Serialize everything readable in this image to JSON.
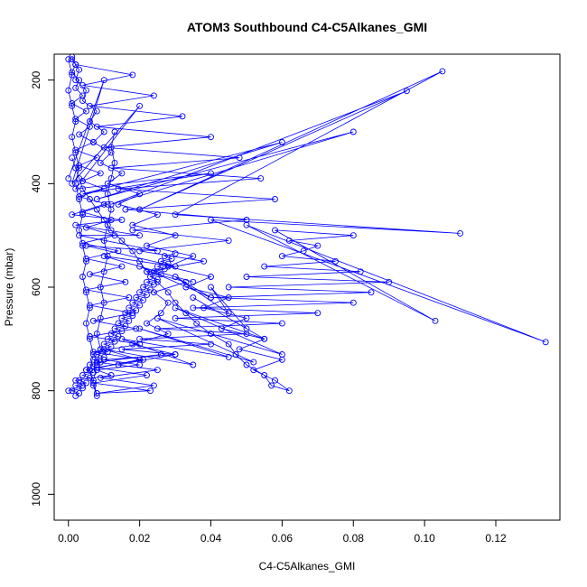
{
  "chart_data": {
    "type": "line",
    "title": "ATOM3 Southbound C4-C5Alkanes_GMI",
    "xlabel": "C4-C5Alkanes_GMI",
    "ylabel": "Pressure (mbar)",
    "xlim": [
      -0.004,
      0.138
    ],
    "ylim": [
      1050,
      150
    ],
    "y_reversed": true,
    "x_ticks": [
      {
        "value": 0.0,
        "label": "0.00"
      },
      {
        "value": 0.02,
        "label": "0.02"
      },
      {
        "value": 0.04,
        "label": "0.04"
      },
      {
        "value": 0.06,
        "label": "0.06"
      },
      {
        "value": 0.08,
        "label": "0.08"
      },
      {
        "value": 0.1,
        "label": "0.10"
      },
      {
        "value": 0.12,
        "label": "0.12"
      }
    ],
    "y_ticks": [
      {
        "value": 200,
        "label": "200"
      },
      {
        "value": 400,
        "label": "400"
      },
      {
        "value": 600,
        "label": "600"
      },
      {
        "value": 800,
        "label": "800"
      },
      {
        "value": 1000,
        "label": "1000"
      }
    ],
    "grid": false,
    "legend": "none",
    "series_color": "#0000ff",
    "marker": "open-circle",
    "series": [
      {
        "x": [
          0.001,
          0.003,
          0.002,
          0.005,
          0.004,
          0.008,
          0.006,
          0.01,
          0.007,
          0.012,
          0.009,
          0.015,
          0.011,
          0.02,
          0.014,
          0.025,
          0.018,
          0.03,
          0.022,
          0.035,
          0.028,
          0.04,
          0.033,
          0.045,
          0.038,
          0.05,
          0.043,
          0.055,
          0.048,
          0.06,
          0.052,
          0.058,
          0.062,
          0.057,
          0.055,
          0.05,
          0.047,
          0.045,
          0.04,
          0.036,
          0.033,
          0.03,
          0.028,
          0.025,
          0.022,
          0.02,
          0.018,
          0.015,
          0.012,
          0.01,
          0.008,
          0.006,
          0.004,
          0.003,
          0.002,
          0.001
        ],
        "y": [
          160,
          180,
          200,
          220,
          240,
          260,
          280,
          300,
          320,
          340,
          360,
          380,
          400,
          420,
          440,
          460,
          480,
          500,
          520,
          540,
          560,
          580,
          600,
          620,
          640,
          660,
          680,
          700,
          720,
          740,
          760,
          780,
          800,
          790,
          770,
          750,
          730,
          710,
          690,
          670,
          650,
          630,
          610,
          590,
          570,
          550,
          530,
          510,
          490,
          470,
          450,
          430,
          410,
          390,
          370,
          350
        ]
      },
      {
        "x": [
          0.0,
          0.004,
          0.002,
          0.012,
          0.008,
          0.02,
          0.01,
          0.03,
          0.015,
          0.04,
          0.02,
          0.05,
          0.025,
          0.06,
          0.03,
          0.07,
          0.035,
          0.08,
          0.04,
          0.085,
          0.045,
          0.09,
          0.05,
          0.082,
          0.055,
          0.075,
          0.06,
          0.066,
          0.07,
          0.062,
          0.08,
          0.058,
          0.103,
          0.05,
          0.134,
          0.04,
          0.11,
          0.03,
          0.105,
          0.02,
          0.095,
          0.012,
          0.08,
          0.008,
          0.06,
          0.004,
          0.04,
          0.002,
          0.02,
          0.001,
          0.01,
          0.0
        ],
        "y": [
          800,
          790,
          780,
          770,
          760,
          750,
          740,
          730,
          720,
          710,
          700,
          690,
          680,
          670,
          660,
          650,
          640,
          630,
          620,
          610,
          600,
          590,
          580,
          570,
          560,
          550,
          540,
          530,
          520,
          510,
          500,
          490,
          665,
          480,
          706,
          470,
          496,
          460,
          183,
          450,
          221,
          440,
          300,
          430,
          320,
          420,
          380,
          410,
          250,
          400,
          200,
          390
        ]
      },
      {
        "x": [
          0.002,
          0.003,
          0.001,
          0.004,
          0.002,
          0.005,
          0.003,
          0.006,
          0.004,
          0.007,
          0.005,
          0.008,
          0.006,
          0.009,
          0.007,
          0.01,
          0.008,
          0.011,
          0.009,
          0.012,
          0.01,
          0.013,
          0.011,
          0.014,
          0.012,
          0.015,
          0.013,
          0.016,
          0.014,
          0.017,
          0.015,
          0.018,
          0.016,
          0.019,
          0.017,
          0.02,
          0.018,
          0.021,
          0.019,
          0.022,
          0.02,
          0.023,
          0.021,
          0.024,
          0.022,
          0.025,
          0.023,
          0.026,
          0.024,
          0.027,
          0.025,
          0.028,
          0.026,
          0.029,
          0.027,
          0.03
        ],
        "y": [
          810,
          805,
          800,
          795,
          790,
          785,
          780,
          775,
          770,
          765,
          760,
          755,
          750,
          745,
          740,
          735,
          730,
          725,
          720,
          715,
          710,
          705,
          700,
          695,
          690,
          685,
          680,
          675,
          670,
          665,
          660,
          655,
          650,
          645,
          640,
          635,
          630,
          625,
          620,
          615,
          610,
          605,
          600,
          595,
          590,
          585,
          580,
          575,
          570,
          565,
          560,
          555,
          550,
          545,
          540,
          535
        ]
      },
      {
        "x": [
          0.001,
          0.002,
          0.001,
          0.003,
          0.002,
          0.004,
          0.001,
          0.005,
          0.002,
          0.006,
          0.003,
          0.007,
          0.002,
          0.008,
          0.003,
          0.009,
          0.004,
          0.01,
          0.003,
          0.011,
          0.004,
          0.012,
          0.005,
          0.013,
          0.004,
          0.014,
          0.005,
          0.015,
          0.006,
          0.016,
          0.005,
          0.017,
          0.006,
          0.018,
          0.007,
          0.019,
          0.006,
          0.02,
          0.007,
          0.021,
          0.008,
          0.022,
          0.007,
          0.023,
          0.008,
          0.024,
          0.009,
          0.025,
          0.008,
          0.026
        ],
        "y": [
          155,
          170,
          185,
          200,
          215,
          230,
          245,
          260,
          275,
          290,
          305,
          320,
          335,
          350,
          365,
          380,
          395,
          410,
          425,
          440,
          455,
          470,
          485,
          500,
          515,
          530,
          545,
          560,
          575,
          590,
          605,
          620,
          635,
          650,
          665,
          680,
          695,
          710,
          725,
          740,
          755,
          770,
          785,
          800,
          805,
          790,
          775,
          760,
          745,
          730
        ]
      },
      {
        "x": [
          0.0,
          0.001,
          0.0,
          0.001,
          0.002,
          0.001,
          0.002,
          0.003,
          0.002,
          0.003,
          0.004,
          0.003,
          0.004,
          0.005,
          0.004,
          0.005,
          0.006,
          0.005,
          0.006,
          0.007,
          0.006,
          0.007,
          0.008,
          0.007,
          0.008,
          0.009,
          0.008,
          0.009,
          0.01,
          0.009,
          0.01,
          0.011,
          0.01,
          0.011,
          0.012,
          0.011,
          0.012,
          0.013,
          0.012,
          0.013
        ],
        "y": [
          160,
          190,
          220,
          250,
          280,
          310,
          340,
          370,
          400,
          430,
          460,
          490,
          520,
          550,
          580,
          610,
          640,
          670,
          700,
          730,
          760,
          790,
          810,
          780,
          750,
          720,
          690,
          660,
          630,
          600,
          570,
          540,
          510,
          480,
          450,
          420,
          390,
          360,
          330,
          300
        ]
      },
      {
        "x": [
          0.005,
          0.02,
          0.01,
          0.035,
          0.015,
          0.045,
          0.02,
          0.052,
          0.025,
          0.06,
          0.03,
          0.055,
          0.035,
          0.05,
          0.04,
          0.045,
          0.03,
          0.04,
          0.02,
          0.035,
          0.01,
          0.03,
          0.005,
          0.025,
          0.003,
          0.02,
          0.002,
          0.015,
          0.001,
          0.01
        ],
        "y": [
          760,
          740,
          720,
          750,
          700,
          735,
          680,
          745,
          660,
          730,
          640,
          700,
          620,
          680,
          600,
          650,
          580,
          620,
          560,
          590,
          540,
          560,
          520,
          530,
          500,
          500,
          480,
          470,
          460,
          440
        ]
      },
      {
        "x": [
          0.002,
          0.018,
          0.004,
          0.024,
          0.006,
          0.032,
          0.008,
          0.04,
          0.01,
          0.048,
          0.012,
          0.054,
          0.014,
          0.058,
          0.016,
          0.05,
          0.018,
          0.045,
          0.02,
          0.038,
          0.022,
          0.033,
          0.024,
          0.028,
          0.026,
          0.022,
          0.028,
          0.018,
          0.03,
          0.014
        ],
        "y": [
          170,
          190,
          210,
          230,
          250,
          270,
          290,
          310,
          330,
          350,
          370,
          390,
          410,
          430,
          450,
          470,
          490,
          510,
          530,
          550,
          570,
          590,
          610,
          630,
          650,
          670,
          690,
          710,
          730,
          750
        ]
      }
    ]
  }
}
